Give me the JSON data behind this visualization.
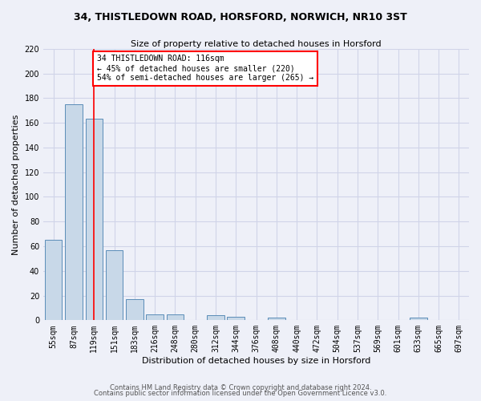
{
  "title1": "34, THISTLEDOWN ROAD, HORSFORD, NORWICH, NR10 3ST",
  "title2": "Size of property relative to detached houses in Horsford",
  "xlabel": "Distribution of detached houses by size in Horsford",
  "ylabel": "Number of detached properties",
  "footer1": "Contains HM Land Registry data © Crown copyright and database right 2024.",
  "footer2": "Contains public sector information licensed under the Open Government Licence v3.0.",
  "bin_labels": [
    "55sqm",
    "87sqm",
    "119sqm",
    "151sqm",
    "183sqm",
    "216sqm",
    "248sqm",
    "280sqm",
    "312sqm",
    "344sqm",
    "376sqm",
    "408sqm",
    "440sqm",
    "472sqm",
    "504sqm",
    "537sqm",
    "569sqm",
    "601sqm",
    "633sqm",
    "665sqm",
    "697sqm"
  ],
  "bar_values": [
    65,
    175,
    163,
    57,
    17,
    5,
    5,
    0,
    4,
    3,
    0,
    2,
    0,
    0,
    0,
    0,
    0,
    0,
    2,
    0,
    0
  ],
  "bar_color": "#c8d8e8",
  "bar_edge_color": "#5b8db8",
  "grid_color": "#d0d4e8",
  "bg_color": "#eef0f8",
  "annotation_line1": "34 THISTLEDOWN ROAD: 116sqm",
  "annotation_line2": "← 45% of detached houses are smaller (220)",
  "annotation_line3": "54% of semi-detached houses are larger (265) →",
  "red_line_x": 2,
  "ylim": [
    0,
    220
  ],
  "yticks": [
    0,
    20,
    40,
    60,
    80,
    100,
    120,
    140,
    160,
    180,
    200,
    220
  ],
  "title1_fontsize": 9,
  "title2_fontsize": 8,
  "ylabel_fontsize": 8,
  "xlabel_fontsize": 8,
  "tick_fontsize": 7,
  "annot_fontsize": 7,
  "footer_fontsize": 6
}
